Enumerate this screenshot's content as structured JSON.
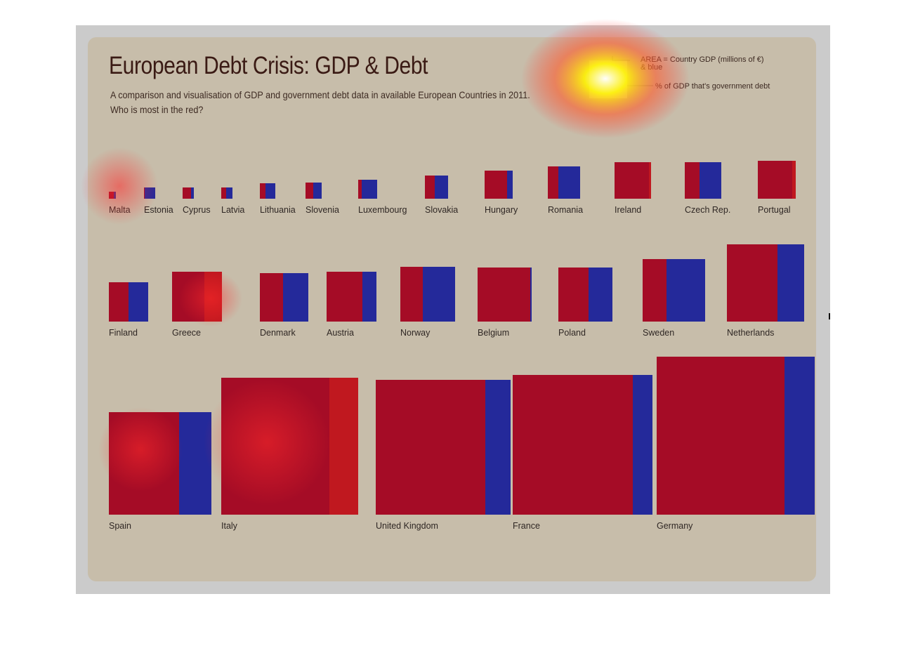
{
  "title": "European Debt Crisis: GDP & Debt",
  "subtitle_line1": "A comparison and visualisation of GDP and government debt data in available European Countries in 2011.",
  "subtitle_line2": "Who is most in the red?",
  "legend": {
    "area_label": "AREA = Country GDP (millions of  €)",
    "blue_label": "& blue",
    "pct_label": "% of GDP that's government debt"
  },
  "colors": {
    "debt_red": "#a50c26",
    "remainder_blue": "#24299a",
    "card": "#c7bdaa",
    "frame": "#cbcbcb"
  },
  "chart_data": {
    "type": "area-proportion",
    "description_source": "square area = GDP; red share = government debt as % of GDP",
    "countries": [
      {
        "name": "Malta",
        "gdp_rel": 0.09,
        "debt_pct": 72
      },
      {
        "name": "Estonia",
        "gdp_rel": 0.25,
        "debt_pct": 6
      },
      {
        "name": "Cyprus",
        "gdp_rel": 0.25,
        "debt_pct": 71
      },
      {
        "name": "Latvia",
        "gdp_rel": 0.25,
        "debt_pct": 42
      },
      {
        "name": "Lithuania",
        "gdp_rel": 0.44,
        "debt_pct": 38
      },
      {
        "name": "Slovenia",
        "gdp_rel": 0.48,
        "debt_pct": 47
      },
      {
        "name": "Luxembourg",
        "gdp_rel": 0.65,
        "debt_pct": 18
      },
      {
        "name": "Slovakia",
        "gdp_rel": 1.0,
        "debt_pct": 43
      },
      {
        "name": "Hungary",
        "gdp_rel": 1.47,
        "debt_pct": 80
      },
      {
        "name": "Romania",
        "gdp_rel": 1.95,
        "debt_pct": 33
      },
      {
        "name": "Ireland",
        "gdp_rel": 2.45,
        "debt_pct": 106
      },
      {
        "name": "Czech Rep.",
        "gdp_rel": 2.45,
        "debt_pct": 41
      },
      {
        "name": "Portugal",
        "gdp_rel": 2.65,
        "debt_pct": 108
      },
      {
        "name": "Finland",
        "gdp_rel": 2.9,
        "debt_pct": 49
      },
      {
        "name": "Greece",
        "gdp_rel": 4.6,
        "debt_pct": 165
      },
      {
        "name": "Denmark",
        "gdp_rel": 4.4,
        "debt_pct": 47
      },
      {
        "name": "Austria",
        "gdp_rel": 4.6,
        "debt_pct": 72
      },
      {
        "name": "Norway",
        "gdp_rel": 5.6,
        "debt_pct": 41
      },
      {
        "name": "Belgium",
        "gdp_rel": 5.4,
        "debt_pct": 98
      },
      {
        "name": "Poland",
        "gdp_rel": 5.4,
        "debt_pct": 56
      },
      {
        "name": "Sweden",
        "gdp_rel": 7.3,
        "debt_pct": 38
      },
      {
        "name": "Netherlands",
        "gdp_rel": 11.2,
        "debt_pct": 65
      },
      {
        "name": "Spain",
        "gdp_rel": 19.7,
        "debt_pct": 68
      },
      {
        "name": "Italy",
        "gdp_rel": 35.0,
        "debt_pct": 121
      },
      {
        "name": "United Kingdom",
        "gdp_rel": 33.9,
        "debt_pct": 81
      },
      {
        "name": "France",
        "gdp_rel": 36.3,
        "debt_pct": 86
      },
      {
        "name": "Germany",
        "gdp_rel": 46.3,
        "debt_pct": 81
      }
    ]
  }
}
